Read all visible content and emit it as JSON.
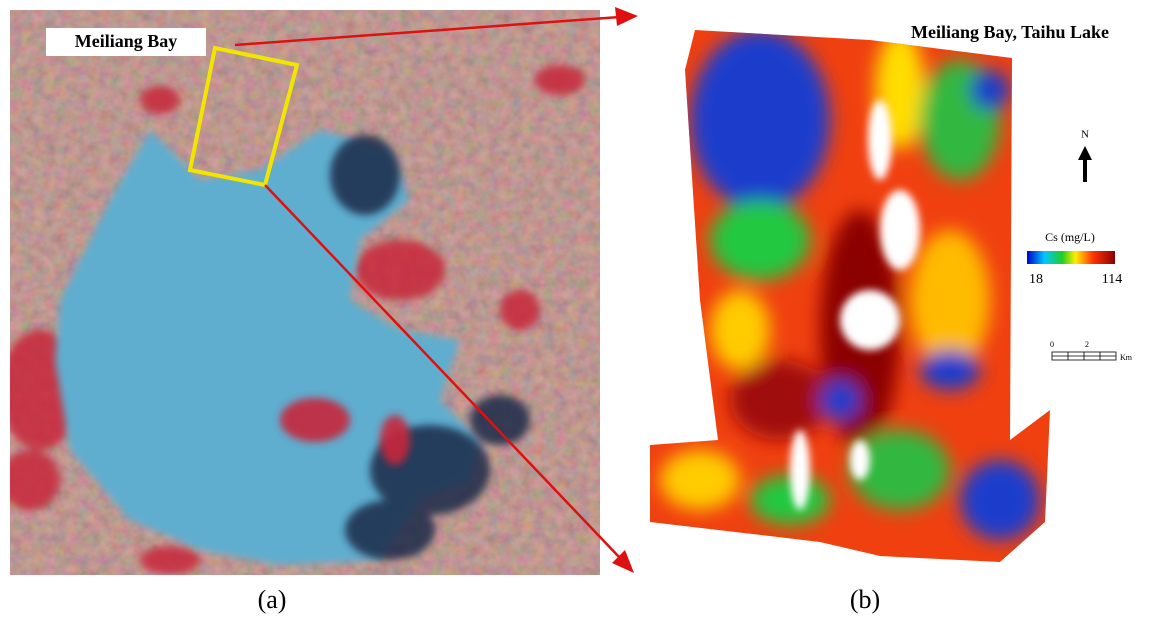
{
  "figure": {
    "panel_a": {
      "annotation": "Meiliang Bay",
      "caption": "(a)"
    },
    "panel_b": {
      "title": "Meiliang Bay, Taihu Lake",
      "caption": "(b)",
      "north": "N",
      "legend": {
        "title": "Cs (mg/L)",
        "min_label": "18",
        "max_label": "114"
      },
      "scale_bar": {
        "start": "0",
        "end": "2",
        "unit": "Km"
      }
    }
  }
}
